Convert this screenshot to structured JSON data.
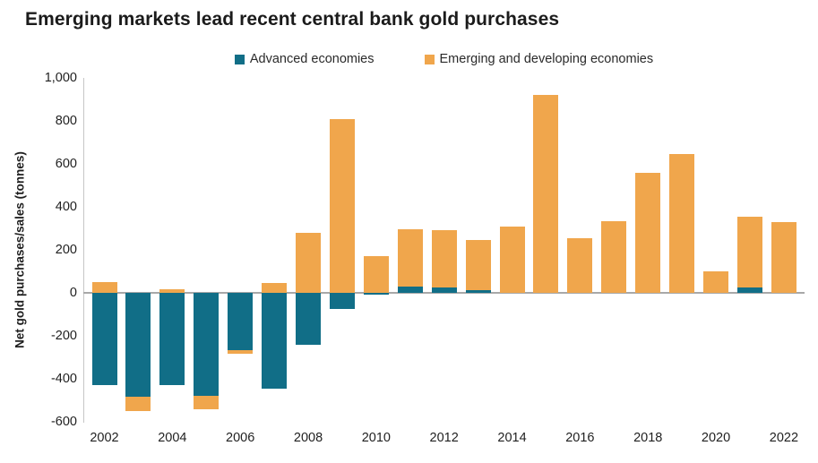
{
  "chart_data": {
    "type": "bar",
    "stacked": true,
    "title": "Emerging markets lead recent central bank gold purchases",
    "ylabel": "Net gold purchases/sales (tonnes)",
    "ylim": [
      -600,
      1000
    ],
    "grid": false,
    "legend_position": "top-center",
    "categories": [
      2002,
      2003,
      2004,
      2005,
      2006,
      2007,
      2008,
      2009,
      2010,
      2011,
      2012,
      2013,
      2014,
      2015,
      2016,
      2017,
      2018,
      2019,
      2020,
      2021,
      2022
    ],
    "series": [
      {
        "name": "Advanced economies",
        "color": "#116e87",
        "values": [
          -430,
          -485,
          -430,
          -480,
          -265,
          -445,
          -240,
          -75,
          -8,
          30,
          25,
          12,
          0,
          0,
          0,
          0,
          0,
          0,
          0,
          25,
          0
        ]
      },
      {
        "name": "Emerging and developing economies",
        "color": "#f0a64c",
        "values": [
          50,
          -65,
          15,
          -60,
          -20,
          45,
          280,
          810,
          170,
          265,
          265,
          235,
          310,
          920,
          255,
          335,
          560,
          645,
          100,
          330,
          330
        ]
      }
    ],
    "yticks": [
      {
        "value": 1000,
        "label": "1,000"
      },
      {
        "value": 800,
        "label": "800"
      },
      {
        "value": 600,
        "label": "600"
      },
      {
        "value": 400,
        "label": "400"
      },
      {
        "value": 200,
        "label": "200"
      },
      {
        "value": 0,
        "label": "0"
      },
      {
        "value": -200,
        "label": "-200"
      },
      {
        "value": -400,
        "label": "-400"
      },
      {
        "value": -600,
        "label": "-600"
      }
    ],
    "xticks": [
      {
        "index": 0,
        "label": "2002"
      },
      {
        "index": 2,
        "label": "2004"
      },
      {
        "index": 4,
        "label": "2006"
      },
      {
        "index": 6,
        "label": "2008"
      },
      {
        "index": 8,
        "label": "2010"
      },
      {
        "index": 10,
        "label": "2012"
      },
      {
        "index": 12,
        "label": "2014"
      },
      {
        "index": 14,
        "label": "2016"
      },
      {
        "index": 16,
        "label": "2018"
      },
      {
        "index": 18,
        "label": "2020"
      },
      {
        "index": 20,
        "label": "2022"
      }
    ],
    "axis_colors": {
      "axis_line": "#c6c6c6",
      "zero_line": "#a8a8a8",
      "text": "#1f1f1f"
    }
  }
}
